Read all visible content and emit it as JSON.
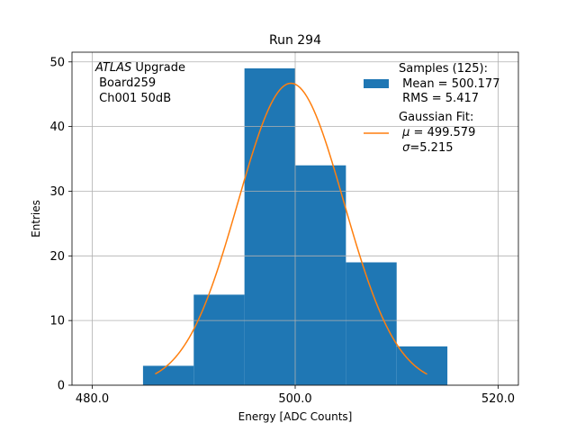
{
  "chart_data": {
    "type": "bar",
    "title": "Run 294",
    "xlabel": "Energy [ADC Counts]",
    "ylabel": "Entries",
    "xlim": [
      478,
      522
    ],
    "ylim": [
      0,
      51.5
    ],
    "grid": true,
    "xticks": [
      480,
      500,
      520
    ],
    "xtick_labels": [
      "480.0",
      "500.0",
      "520.0"
    ],
    "yticks": [
      0,
      10,
      20,
      30,
      40,
      50
    ],
    "ytick_labels": [
      "0",
      "10",
      "20",
      "30",
      "40",
      "50"
    ],
    "histogram": {
      "bins": [
        {
          "lo": 485,
          "hi": 490,
          "count": 3
        },
        {
          "lo": 490,
          "hi": 495,
          "count": 14
        },
        {
          "lo": 495,
          "hi": 500,
          "count": 49
        },
        {
          "lo": 500,
          "hi": 505,
          "count": 34
        },
        {
          "lo": 505,
          "hi": 510,
          "count": 19
        },
        {
          "lo": 510,
          "hi": 515,
          "count": 6
        }
      ],
      "color": "#1f77b4"
    },
    "fit": {
      "name": "Gaussian Fit",
      "mu": 499.579,
      "sigma": 5.215,
      "amplitude": 46.7,
      "x_range": [
        486.2,
        513
      ],
      "color": "#ff7f0e"
    },
    "annotation": {
      "italic": "ATLAS",
      "rest": " Upgrade",
      "line2": " Board259",
      "line3": " Ch001 50dB"
    },
    "legend": {
      "placement": "top-right",
      "samples_title": "Samples (125):",
      "samples_mean": " Mean = 500.177",
      "samples_rms": " RMS = 5.417",
      "fit_title": "Gaussian Fit:",
      "fit_mu_symbol": "μ",
      "fit_mu_value": " = 499.579",
      "fit_sigma_symbol": "σ",
      "fit_sigma_value": "=5.215"
    }
  }
}
